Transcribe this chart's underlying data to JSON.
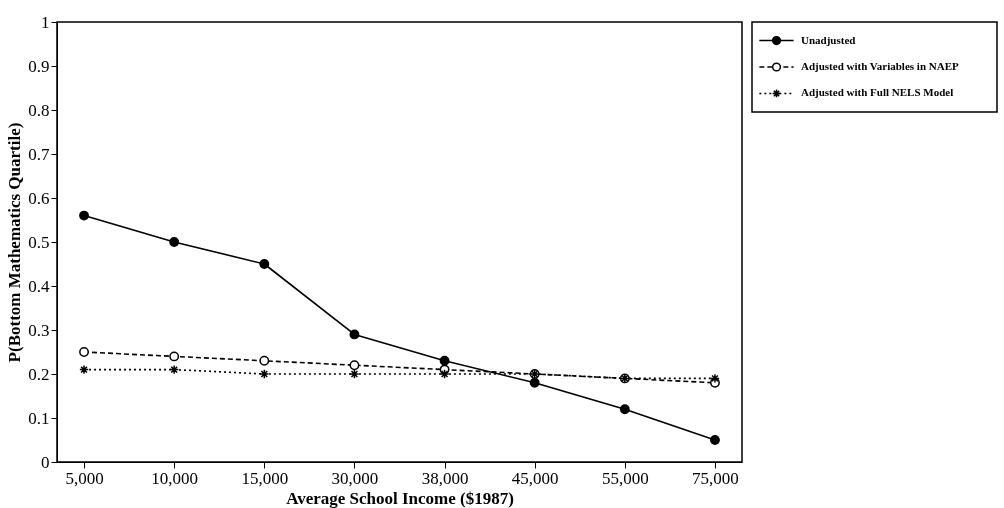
{
  "chart_data": {
    "type": "line",
    "xlabel": "Average School Income ($1987)",
    "ylabel": "P(Bottom Mathematics Quartile)",
    "categories": [
      "5,000",
      "10,000",
      "15,000",
      "30,000",
      "38,000",
      "45,000",
      "55,000",
      "75,000"
    ],
    "series": [
      {
        "name": "Unadjusted",
        "color": "#000000",
        "line_style": "solid",
        "marker": "circle",
        "values": [
          0.56,
          0.5,
          0.45,
          0.29,
          0.23,
          0.18,
          0.12,
          0.05
        ]
      },
      {
        "name": "Adjusted with Variables in NAEP",
        "color": "#000000",
        "line_style": "dashed",
        "marker": "circle",
        "values": [
          0.25,
          0.24,
          0.23,
          0.22,
          0.21,
          0.2,
          0.19,
          0.18
        ]
      },
      {
        "name": "Adjusted with Full NELS Model",
        "color": "#000000",
        "line_style": "dotted",
        "marker": "cross",
        "values": [
          0.21,
          0.21,
          0.2,
          0.2,
          0.2,
          0.2,
          0.19,
          0.19
        ]
      }
    ],
    "ylim": [
      0,
      1
    ],
    "yticks": [
      0,
      0.1,
      0.2,
      0.3,
      0.4,
      0.5,
      0.6,
      0.7,
      0.8,
      0.9,
      1
    ],
    "grid": false,
    "legend": "top right"
  }
}
